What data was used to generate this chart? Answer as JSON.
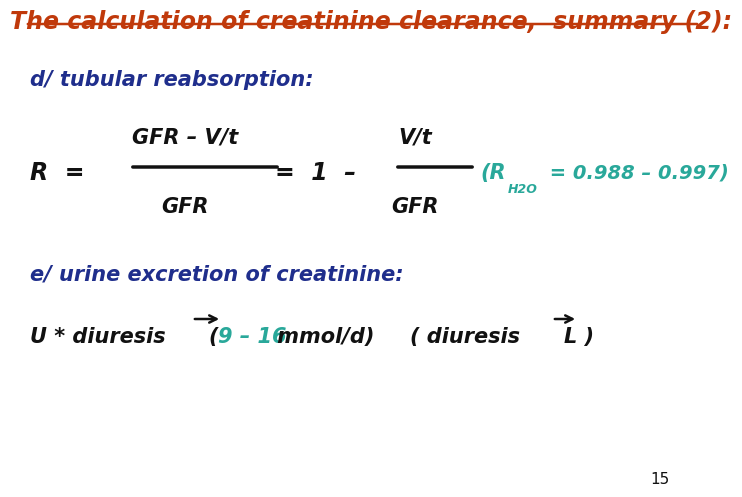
{
  "title": "The calculation of creatinine clearance,  summary (2):",
  "title_color": "#C0390B",
  "bg_color": "#FFFFFF",
  "section_d_label": "d/ tubular reabsorption:",
  "section_d_color": "#1F2E8C",
  "section_e_label": "e/ urine excretion of creatinine:",
  "section_e_color": "#1F2E8C",
  "formula_color": "#111111",
  "highlight_color": "#29A89A",
  "page_number": "15",
  "font_size_title": 17,
  "font_size_section": 15,
  "font_size_formula": 15,
  "font_size_sub": 9,
  "font_size_small": 11
}
